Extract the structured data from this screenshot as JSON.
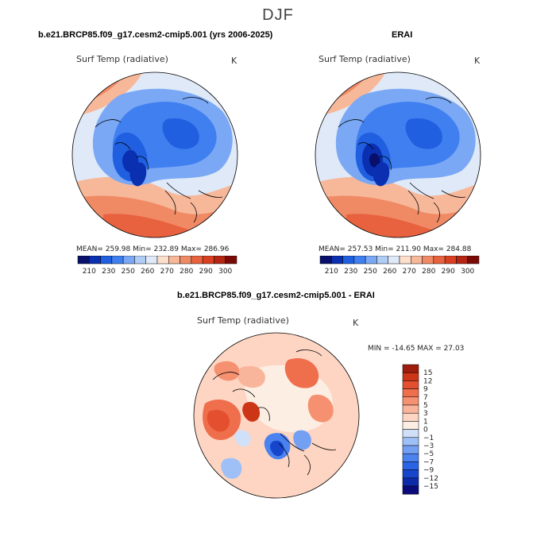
{
  "suptitle": "DJF",
  "panels": [
    {
      "title": "b.e21.BRCP85.f09_g17.cesm2-cmip5.001 (yrs 2006-2025)",
      "variable": "Surf Temp (radiative)",
      "units": "K",
      "stats": "MEAN= 259.98   Min= 232.89   Max= 286.96",
      "colorbar_ticks": [
        "210",
        "230",
        "250",
        "260",
        "270",
        "280",
        "290",
        "300"
      ]
    },
    {
      "title": "ERAI",
      "variable": "Surf Temp (radiative)",
      "units": "K",
      "stats": "MEAN= 257.53   Min= 211.90   Max= 284.88",
      "colorbar_ticks": [
        "210",
        "230",
        "250",
        "260",
        "270",
        "280",
        "290",
        "300"
      ]
    },
    {
      "title": "b.e21.BRCP85.f09_g17.cesm2-cmip5.001 - ERAI",
      "variable": "Surf Temp (radiative)",
      "units": "K",
      "stats": "MIN = -14.65  MAX =  27.03",
      "colorbar_ticks": [
        "15",
        "12",
        "9",
        "7",
        "5",
        "3",
        "1",
        "0",
        "−1",
        "−3",
        "−5",
        "−7",
        "−9",
        "−12",
        "−15"
      ]
    }
  ],
  "chart_data": [
    {
      "type": "heatmap",
      "projection": "north-polar-stereographic",
      "title": "b.e21.BRCP85.f09_g17.cesm2-cmip5.001 (yrs 2006-2025)",
      "variable": "Surf Temp (radiative)",
      "units": "K",
      "mean": 259.98,
      "min": 232.89,
      "max": 286.96,
      "levels": [
        210,
        230,
        250,
        260,
        270,
        280,
        290,
        300
      ],
      "colors": [
        "#08106b",
        "#0a2fb0",
        "#1f5fe0",
        "#3f7ff0",
        "#7aa8f5",
        "#b0cdf6",
        "#dfe9f7",
        "#fde0cc",
        "#f7b89a",
        "#f08a65",
        "#e8623f",
        "#d94022",
        "#b52513",
        "#7a0a06"
      ]
    },
    {
      "type": "heatmap",
      "projection": "north-polar-stereographic",
      "title": "ERAI",
      "variable": "Surf Temp (radiative)",
      "units": "K",
      "mean": 257.53,
      "min": 211.9,
      "max": 284.88,
      "levels": [
        210,
        230,
        250,
        260,
        270,
        280,
        290,
        300
      ],
      "colors": [
        "#08106b",
        "#0a2fb0",
        "#1f5fe0",
        "#3f7ff0",
        "#7aa8f5",
        "#b0cdf6",
        "#dfe9f7",
        "#fde0cc",
        "#f7b89a",
        "#f08a65",
        "#e8623f",
        "#d94022",
        "#b52513",
        "#7a0a06"
      ]
    },
    {
      "type": "heatmap",
      "projection": "north-polar-stereographic",
      "title": "b.e21.BRCP85.f09_g17.cesm2-cmip5.001 - ERAI",
      "variable": "Surf Temp (radiative)",
      "units": "K",
      "min": -14.65,
      "max": 27.03,
      "levels": [
        -15,
        -12,
        -9,
        -7,
        -5,
        -3,
        -1,
        0,
        1,
        3,
        5,
        7,
        9,
        12,
        15
      ],
      "colors": [
        "#0a0a7a",
        "#0d2aa8",
        "#1546cc",
        "#2a64e4",
        "#4a82f0",
        "#74a0f4",
        "#9fc0f6",
        "#cfe0f8",
        "#fdeee4",
        "#fdd5c2",
        "#f9b59b",
        "#f59170",
        "#ef6e4c",
        "#e4502f",
        "#cc3516",
        "#a01c0c"
      ]
    }
  ]
}
